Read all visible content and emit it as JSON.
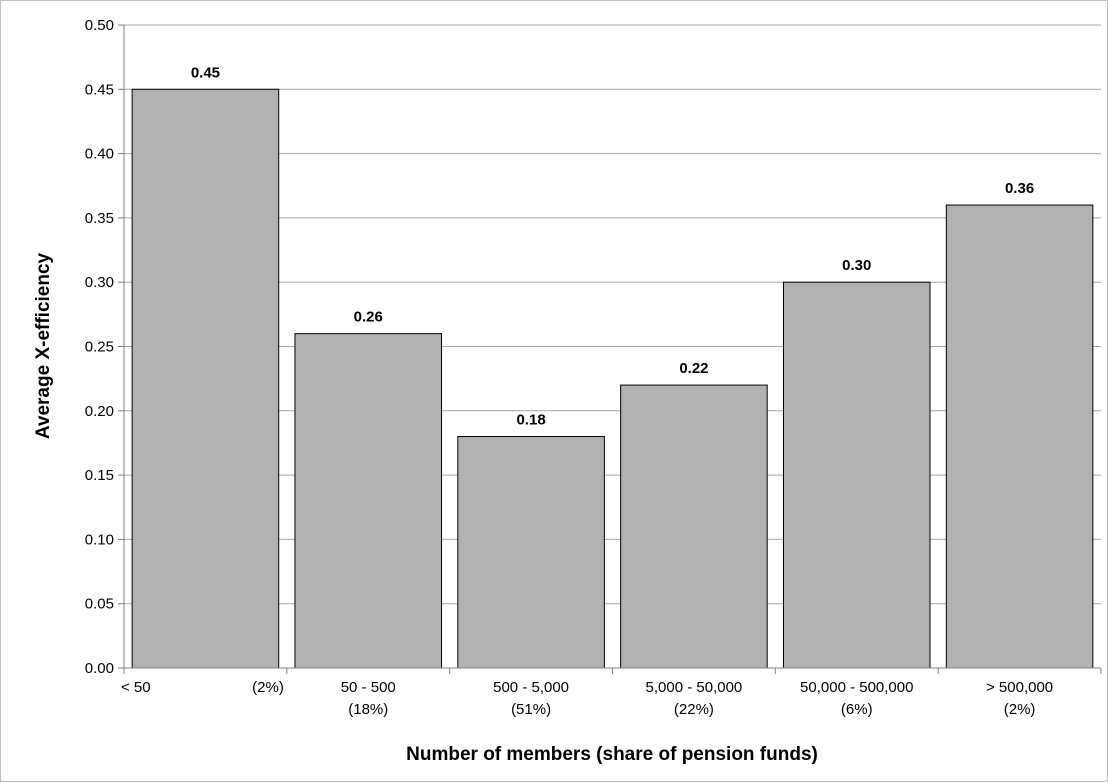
{
  "chart_data": {
    "type": "bar",
    "title": "",
    "xlabel": "Number of members (share of pension funds)",
    "ylabel": "Average X-efficiency",
    "categories": [
      {
        "name": "< 50",
        "share": "(2%)"
      },
      {
        "name": "50 - 500",
        "share": "(18%)"
      },
      {
        "name": "500 - 5,000",
        "share": "(51%)"
      },
      {
        "name": "5,000 - 50,000",
        "share": "(22%)"
      },
      {
        "name": "50,000 - 500,000",
        "share": "(6%)"
      },
      {
        "name": "> 500,000",
        "share": "(2%)"
      }
    ],
    "values": [
      0.45,
      0.26,
      0.18,
      0.22,
      0.3,
      0.36
    ],
    "data_labels": [
      "0.45",
      "0.26",
      "0.18",
      "0.22",
      "0.30",
      "0.36"
    ],
    "ylim": [
      0,
      0.5
    ],
    "yticks": [
      "0.00",
      "0.05",
      "0.10",
      "0.15",
      "0.20",
      "0.25",
      "0.30",
      "0.35",
      "0.40",
      "0.45",
      "0.50"
    ],
    "grid": true,
    "legend": "none",
    "bar_color": "#b2b2b2",
    "bar_edge_color": "#000000",
    "grid_color": "#a6a6a6"
  }
}
